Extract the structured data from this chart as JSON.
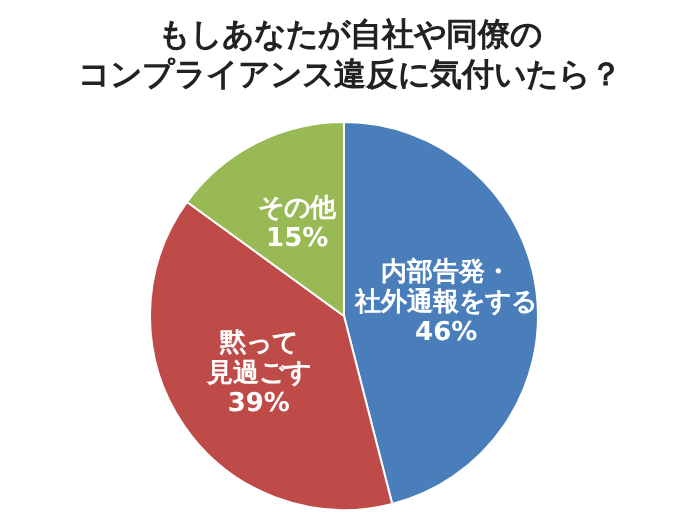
{
  "chart_data": {
    "type": "pie",
    "title": "もしあなたが自社や同僚のコンプライアンス違反に気付いたら？",
    "categories": [
      "内部告発・社外通報をする",
      "黙って見過ごす",
      "その他"
    ],
    "values": [
      46,
      39,
      15
    ],
    "value_labels": [
      "46%",
      "39%",
      "15%"
    ],
    "colors": [
      "#4a7ebb",
      "#be4b48",
      "#98b954"
    ],
    "legend": false
  }
}
